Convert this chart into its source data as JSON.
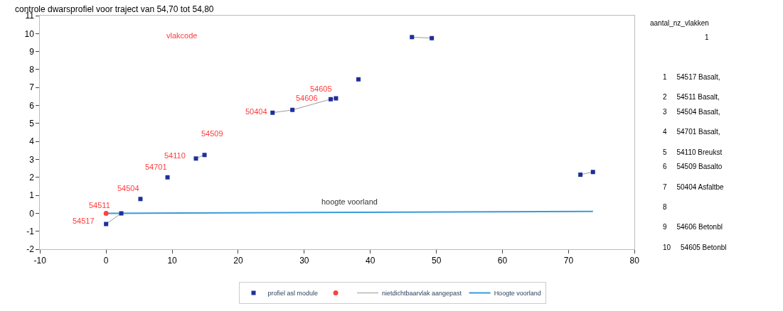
{
  "chart_data": [
    {
      "type": "scatter",
      "title": "controle dwarsprofiel voor traject van 54,70 tot 54,80",
      "xlim": [
        -10,
        80
      ],
      "xticks": [
        -10,
        0,
        10,
        20,
        30,
        40,
        50,
        60,
        70,
        80
      ],
      "ylim": [
        -2,
        11
      ],
      "yticks": [
        -2,
        -1,
        0,
        1,
        2,
        3,
        4,
        5,
        6,
        7,
        8,
        9,
        10,
        11
      ],
      "legend": "bottom",
      "series": [
        {
          "name": "profiel asl module",
          "type": "scatter",
          "marker": "square",
          "color": "#1f2f9a",
          "x": [
            0,
            2.3,
            5.2,
            9.3,
            13.6,
            14.9,
            25.2,
            28.2,
            34.0,
            34.8,
            38.2,
            46.3,
            49.3,
            71.8,
            73.7
          ],
          "values": [
            -0.6,
            0,
            0.8,
            2.0,
            3.05,
            3.25,
            5.6,
            5.75,
            6.35,
            6.4,
            7.45,
            9.8,
            9.75,
            2.15,
            2.3
          ]
        },
        {
          "type": "scatter",
          "marker": "circle",
          "color": "#ff4040",
          "x": [
            0
          ],
          "values": [
            0
          ]
        },
        {
          "name": "nietdichtbaarvlak aangepast",
          "type": "line",
          "marker": "none",
          "color": "#9a9a9a",
          "x": [
            0,
            2.3,
            null,
            13.6,
            14.9,
            null,
            25.2,
            28.2,
            34.0,
            34.8,
            null,
            46.3,
            49.3,
            null,
            71.8,
            73.7
          ],
          "values": [
            -0.6,
            0,
            null,
            3.05,
            3.25,
            null,
            5.6,
            5.75,
            6.35,
            6.4,
            null,
            9.8,
            9.75,
            null,
            2.15,
            2.3
          ]
        },
        {
          "name": "Hoogte voorland",
          "type": "line",
          "marker": "none",
          "color": "#3a9ad9",
          "x": [
            0,
            73.7
          ],
          "values": [
            0,
            0.1
          ]
        }
      ],
      "annotations": [
        "vlakcode",
        "hoogte voorland",
        "54517",
        "54511",
        "54504",
        "54701",
        "54110",
        "54509",
        "50404",
        "54606",
        "54605"
      ]
    },
    {
      "type": "other",
      "annotations": [
        "aantal_nz_vlakken",
        "1",
        "1     54517 Basalt,",
        "2     54511 Basalt,",
        "3     54504 Basalt,",
        "4     54701 Basalt,",
        "5     54110 Breukst",
        "6     54509 Basalto",
        "7     50404 Asfaltbe",
        "8",
        "9     54606 Betonbl",
        "10     54605 Betonbl"
      ]
    }
  ]
}
